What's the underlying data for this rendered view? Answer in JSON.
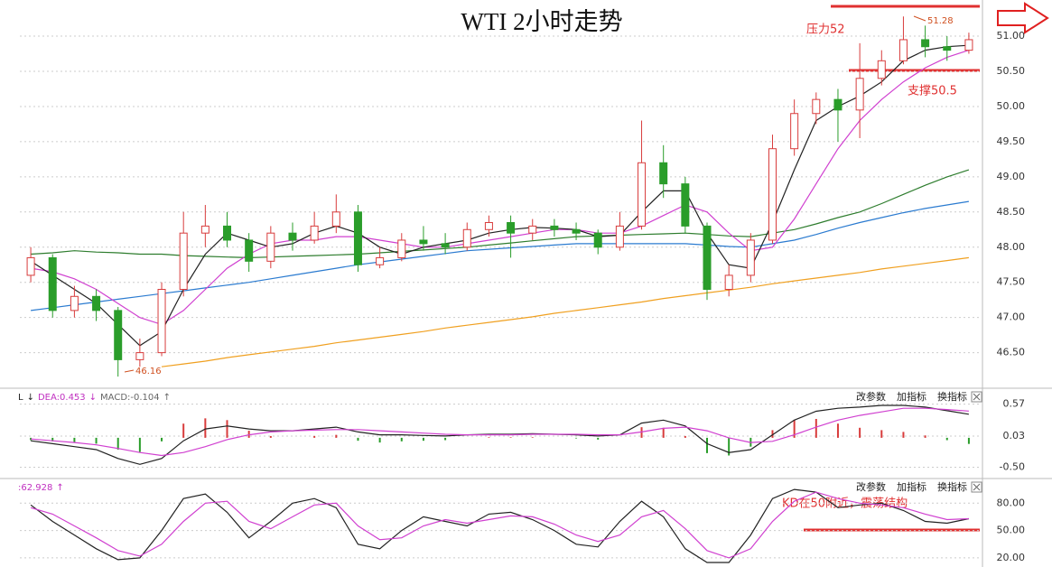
{
  "chart_data": [
    {
      "type": "candlestick",
      "title": "WTI 2小时走势",
      "open": [
        47.6,
        47.85,
        47.1,
        47.3,
        47.1,
        46.4,
        46.5,
        47.4,
        48.2,
        48.3,
        48.1,
        47.8,
        48.2,
        48.1,
        48.3,
        48.5,
        47.75,
        47.85,
        48.1,
        48.05,
        48.0,
        48.25,
        48.35,
        48.2,
        48.3,
        48.25,
        48.2,
        48.0,
        48.3,
        49.2,
        48.9,
        48.3,
        47.4,
        47.6,
        48.1,
        49.4,
        49.9,
        50.1,
        49.95,
        50.4,
        50.65,
        50.95,
        50.85,
        50.8
      ],
      "high": [
        48.0,
        47.9,
        47.45,
        47.4,
        47.15,
        46.7,
        47.5,
        48.5,
        48.6,
        48.5,
        48.2,
        48.3,
        48.35,
        48.5,
        48.75,
        48.6,
        48.0,
        48.2,
        48.3,
        48.2,
        48.35,
        48.45,
        48.45,
        48.4,
        48.4,
        48.35,
        48.25,
        48.5,
        49.8,
        49.45,
        49.0,
        48.35,
        47.75,
        48.2,
        49.6,
        50.1,
        50.2,
        50.25,
        50.9,
        50.8,
        51.28,
        51.15,
        51.0,
        51.05
      ],
      "low": [
        47.5,
        47.0,
        47.0,
        46.95,
        46.16,
        46.3,
        46.45,
        47.3,
        48.0,
        48.0,
        47.65,
        47.7,
        47.95,
        48.05,
        48.2,
        47.65,
        47.7,
        47.8,
        47.95,
        47.9,
        47.95,
        48.15,
        47.85,
        48.1,
        48.15,
        48.1,
        47.9,
        47.95,
        48.25,
        48.7,
        48.2,
        47.25,
        47.3,
        47.5,
        48.05,
        49.3,
        49.75,
        49.5,
        49.55,
        50.3,
        50.6,
        50.7,
        50.65,
        50.75
      ],
      "close": [
        47.85,
        47.1,
        47.3,
        47.1,
        46.4,
        46.5,
        47.4,
        48.2,
        48.3,
        48.1,
        47.8,
        48.2,
        48.1,
        48.3,
        48.5,
        47.75,
        47.85,
        48.1,
        48.05,
        48.0,
        48.25,
        48.35,
        48.2,
        48.3,
        48.25,
        48.2,
        48.0,
        48.3,
        49.2,
        48.9,
        48.3,
        47.4,
        47.6,
        48.1,
        49.4,
        49.9,
        50.1,
        49.95,
        50.4,
        50.65,
        50.95,
        50.85,
        50.8,
        50.95
      ],
      "up_color": "#d83c3c",
      "down_color": "#2a9d2a",
      "series": [
        {
          "color": "#f0a020",
          "values": [
            null,
            null,
            null,
            null,
            null,
            null,
            46.3,
            46.34,
            46.38,
            46.43,
            46.47,
            46.51,
            46.55,
            46.59,
            46.64,
            46.68,
            46.72,
            46.76,
            46.8,
            46.85,
            46.89,
            46.93,
            46.97,
            47.01,
            47.06,
            47.1,
            47.14,
            47.18,
            47.22,
            47.27,
            47.31,
            47.35,
            47.39,
            47.43,
            47.48,
            47.52,
            47.56,
            47.6,
            47.64,
            47.69,
            47.73,
            47.77,
            47.81,
            47.85
          ]
        },
        {
          "color": "#2b7bd0",
          "values": [
            47.1,
            47.14,
            47.18,
            47.22,
            47.26,
            47.3,
            47.34,
            47.38,
            47.42,
            47.46,
            47.5,
            47.55,
            47.6,
            47.65,
            47.7,
            47.75,
            47.79,
            47.83,
            47.87,
            47.91,
            47.95,
            47.97,
            47.99,
            48.01,
            48.03,
            48.05,
            48.05,
            48.05,
            48.05,
            48.05,
            48.05,
            48.03,
            48.01,
            48.0,
            48.05,
            48.1,
            48.18,
            48.27,
            48.35,
            48.42,
            48.49,
            48.55,
            48.6,
            48.65
          ]
        },
        {
          "color": "#2e7d2e",
          "values": [
            47.9,
            47.92,
            47.95,
            47.93,
            47.92,
            47.9,
            47.9,
            47.88,
            47.87,
            47.86,
            47.85,
            47.86,
            47.87,
            47.88,
            47.89,
            47.9,
            47.92,
            47.94,
            47.96,
            47.98,
            48.0,
            48.03,
            48.06,
            48.09,
            48.12,
            48.15,
            48.16,
            48.17,
            48.18,
            48.19,
            48.2,
            48.18,
            48.16,
            48.15,
            48.2,
            48.25,
            48.33,
            48.42,
            48.5,
            48.62,
            48.75,
            48.88,
            49.0,
            49.1
          ]
        },
        {
          "color": "#d040d0",
          "values": [
            47.7,
            47.65,
            47.55,
            47.4,
            47.2,
            47.0,
            46.9,
            47.1,
            47.4,
            47.7,
            47.9,
            48.05,
            48.1,
            48.1,
            48.15,
            48.15,
            48.1,
            48.05,
            48.0,
            48.0,
            48.05,
            48.1,
            48.15,
            48.2,
            48.25,
            48.25,
            48.2,
            48.2,
            48.3,
            48.45,
            48.6,
            48.5,
            48.2,
            47.95,
            48.0,
            48.4,
            48.9,
            49.4,
            49.8,
            50.1,
            50.35,
            50.55,
            50.7,
            50.8
          ]
        },
        {
          "color": "#222222",
          "values": [
            47.8,
            47.6,
            47.4,
            47.2,
            46.9,
            46.6,
            46.8,
            47.4,
            47.9,
            48.2,
            48.1,
            48.0,
            48.05,
            48.2,
            48.3,
            48.2,
            48.0,
            47.9,
            48.0,
            48.05,
            48.1,
            48.2,
            48.25,
            48.28,
            48.27,
            48.25,
            48.15,
            48.17,
            48.5,
            48.8,
            48.8,
            48.2,
            47.75,
            47.7,
            48.35,
            49.1,
            49.8,
            50.0,
            50.15,
            50.35,
            50.65,
            50.8,
            50.85,
            50.87
          ]
        }
      ],
      "ylim": [
        46.02,
        51.45
      ],
      "yticks": [
        {
          "value": 46.5,
          "label": "46.50"
        },
        {
          "value": 47,
          "label": "47.00"
        },
        {
          "value": 47.5,
          "label": "47.50"
        },
        {
          "value": 48,
          "label": "48.00"
        },
        {
          "value": 48.5,
          "label": "48.50"
        },
        {
          "value": 49,
          "label": "49.00"
        },
        {
          "value": 49.5,
          "label": "49.50"
        },
        {
          "value": 50,
          "label": "50.00"
        },
        {
          "value": 50.5,
          "label": "50.50"
        },
        {
          "value": 51,
          "label": "51.00"
        }
      ],
      "grid": true,
      "annotations": [
        "压力52",
        "51.28",
        "支撑50.5",
        "46.16"
      ]
    },
    {
      "type": "macd",
      "indicator_labels": [
        "L",
        "↓",
        "DEA:0.453",
        "↓",
        "MACD:-0.104",
        "↑"
      ],
      "toolbar": [
        "改参数",
        "加指标",
        "换指标"
      ],
      "values": [
        -0.04,
        -0.06,
        -0.08,
        -0.1,
        -0.2,
        -0.24,
        -0.06,
        0.24,
        0.33,
        0.3,
        0.12,
        0.03,
        0.0,
        0.03,
        0.05,
        -0.05,
        -0.08,
        -0.06,
        -0.05,
        -0.04,
        0.0,
        0.01,
        0.01,
        0.01,
        0.0,
        -0.01,
        -0.03,
        0.0,
        0.18,
        0.17,
        0.03,
        -0.26,
        -0.3,
        -0.15,
        0.13,
        0.3,
        0.32,
        0.24,
        0.17,
        0.13,
        0.1,
        0.04,
        -0.04,
        -0.104
      ],
      "up_color": "#d83c3c",
      "down_color": "#2a9d2a",
      "series": [
        {
          "color": "#222222",
          "values": [
            -0.05,
            -0.1,
            -0.15,
            -0.2,
            -0.35,
            -0.45,
            -0.35,
            -0.05,
            0.15,
            0.2,
            0.15,
            0.12,
            0.12,
            0.15,
            0.18,
            0.1,
            0.05,
            0.05,
            0.04,
            0.03,
            0.05,
            0.06,
            0.06,
            0.07,
            0.06,
            0.05,
            0.03,
            0.05,
            0.25,
            0.3,
            0.2,
            -0.1,
            -0.25,
            -0.2,
            0.05,
            0.3,
            0.45,
            0.5,
            0.52,
            0.55,
            0.55,
            0.52,
            0.46,
            0.4
          ]
        },
        {
          "color": "#d040d0",
          "values": [
            -0.02,
            -0.05,
            -0.08,
            -0.12,
            -0.18,
            -0.25,
            -0.3,
            -0.25,
            -0.15,
            -0.03,
            0.05,
            0.1,
            0.12,
            0.13,
            0.14,
            0.14,
            0.12,
            0.1,
            0.08,
            0.06,
            0.05,
            0.05,
            0.05,
            0.06,
            0.06,
            0.06,
            0.05,
            0.05,
            0.1,
            0.16,
            0.18,
            0.12,
            0.0,
            -0.08,
            -0.06,
            0.05,
            0.18,
            0.3,
            0.38,
            0.44,
            0.5,
            0.5,
            0.48,
            0.453
          ]
        }
      ],
      "ylim": [
        -0.66,
        0.81
      ],
      "yticks": [
        {
          "value": -0.5,
          "label": "-0.50"
        },
        0.03,
        0.57
      ],
      "grid": true
    },
    {
      "type": "line",
      "indicator_labels": [
        ":62.928",
        "↑"
      ],
      "toolbar": [
        "改参数",
        "加指标",
        "换指标"
      ],
      "series": [
        {
          "color": "#222222",
          "values": [
            78,
            60,
            45,
            30,
            18,
            20,
            50,
            85,
            90,
            70,
            42,
            60,
            80,
            85,
            75,
            35,
            30,
            50,
            65,
            60,
            55,
            68,
            70,
            62,
            50,
            35,
            32,
            60,
            82,
            65,
            30,
            15,
            15,
            45,
            85,
            95,
            92,
            75,
            78,
            80,
            72,
            60,
            58,
            63
          ]
        },
        {
          "color": "#d040d0",
          "values": [
            75,
            68,
            55,
            42,
            28,
            22,
            35,
            60,
            80,
            82,
            60,
            52,
            65,
            78,
            80,
            55,
            40,
            42,
            55,
            62,
            58,
            62,
            66,
            65,
            57,
            45,
            38,
            45,
            65,
            72,
            52,
            28,
            20,
            30,
            60,
            82,
            92,
            85,
            80,
            78,
            75,
            68,
            62,
            62.928
          ]
        }
      ],
      "ylim": [
        12,
        105
      ],
      "yticks": [
        {
          "value": 20,
          "label": "20.00"
        },
        {
          "value": 50,
          "label": "50.00"
        },
        {
          "value": 80,
          "label": "80.00"
        }
      ],
      "grid": true,
      "annotations": [
        "KD在50附近，震荡结构"
      ]
    }
  ]
}
